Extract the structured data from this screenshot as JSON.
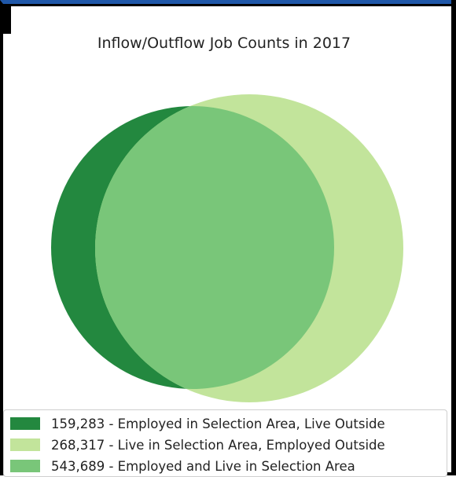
{
  "chart_data": {
    "type": "venn",
    "title": "Inflow/Outflow Job Counts in 2017",
    "series": [
      {
        "name": "Employed in Selection Area, Live Outside",
        "value": 159283,
        "label": "159,283 - Employed in Selection Area, Live Outside",
        "color": "#23883f"
      },
      {
        "name": "Live in Selection Area, Employed Outside",
        "value": 268317,
        "label": "268,317 - Live in Selection Area, Employed Outside",
        "color": "#c2e49b"
      },
      {
        "name": "Employed and Live in Selection Area",
        "value": 543689,
        "label": "543,689 - Employed and Live in Selection Area",
        "color": "#79c679"
      }
    ],
    "legend": {
      "placement": "bottom"
    }
  }
}
